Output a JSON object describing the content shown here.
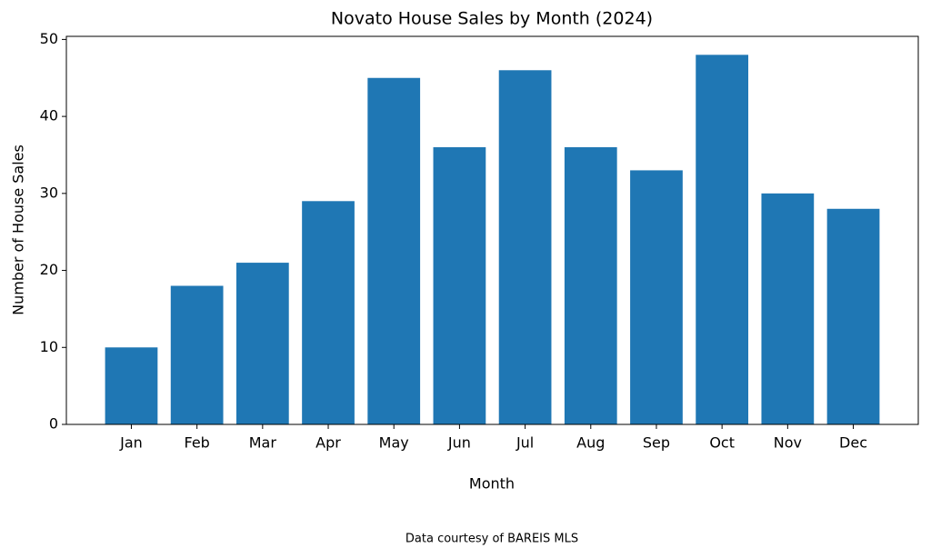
{
  "chart_data": {
    "type": "bar",
    "title": "Novato House Sales by Month (2024)",
    "x_label": "Month",
    "y_label": "Number of House Sales",
    "caption": "Data courtesy of BAREIS MLS",
    "categories": [
      "Jan",
      "Feb",
      "Mar",
      "Apr",
      "May",
      "Jun",
      "Jul",
      "Aug",
      "Sep",
      "Oct",
      "Nov",
      "Dec"
    ],
    "values": [
      10,
      18,
      21,
      29,
      45,
      36,
      46,
      36,
      33,
      48,
      30,
      28
    ],
    "color": "#1f77b4",
    "ylim": [
      0,
      50.4
    ],
    "yticks": [
      0,
      10,
      20,
      30,
      40,
      50
    ],
    "grid": false
  }
}
